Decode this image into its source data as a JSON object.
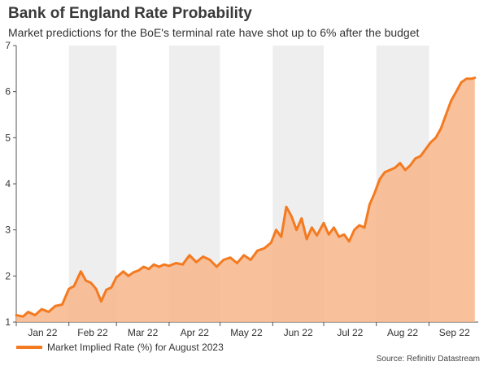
{
  "title": "Bank of England Rate Probability",
  "subtitle": "Market predictions for the BoE's terminal rate have shot up to 6% after the budget",
  "source": "Source: Refinitiv Datastream",
  "colors": {
    "line": "#f47a20",
    "area": "#f7b68a",
    "shade": "#eeeeee"
  },
  "chart_data": {
    "type": "area",
    "title": "Bank of England Rate Probability",
    "subtitle": "Market predictions for the BoE's terminal rate have shot up to 6% after the budget",
    "xlabel": "",
    "ylabel": "",
    "ylim": [
      1,
      7
    ],
    "yticks": [
      1,
      2,
      3,
      4,
      5,
      6,
      7
    ],
    "grid": false,
    "legend_position": "bottom-left",
    "month_labels": [
      "Jan 22",
      "Feb 22",
      "Mar 22",
      "Apr 22",
      "May 22",
      "Jun 22",
      "Jul 22",
      "Aug 22",
      "Sep 22"
    ],
    "series": [
      {
        "name": "Market Implied Rate (%) for August 2023",
        "x": [
          "2022-01-01",
          "2022-01-05",
          "2022-01-08",
          "2022-01-12",
          "2022-01-16",
          "2022-01-20",
          "2022-01-24",
          "2022-01-28",
          "2022-02-01",
          "2022-02-04",
          "2022-02-08",
          "2022-02-11",
          "2022-02-14",
          "2022-02-17",
          "2022-02-20",
          "2022-02-23",
          "2022-02-26",
          "2022-03-01",
          "2022-03-02",
          "2022-03-05",
          "2022-03-08",
          "2022-03-11",
          "2022-03-14",
          "2022-03-17",
          "2022-03-20",
          "2022-03-23",
          "2022-03-26",
          "2022-03-29",
          "2022-04-01",
          "2022-04-05",
          "2022-04-09",
          "2022-04-13",
          "2022-04-17",
          "2022-04-21",
          "2022-04-25",
          "2022-04-29",
          "2022-05-03",
          "2022-05-07",
          "2022-05-11",
          "2022-05-15",
          "2022-05-19",
          "2022-05-23",
          "2022-05-27",
          "2022-05-31",
          "2022-06-03",
          "2022-06-06",
          "2022-06-09",
          "2022-06-12",
          "2022-06-15",
          "2022-06-18",
          "2022-06-21",
          "2022-06-24",
          "2022-06-27",
          "2022-07-01",
          "2022-07-04",
          "2022-07-07",
          "2022-07-10",
          "2022-07-13",
          "2022-07-16",
          "2022-07-19",
          "2022-07-22",
          "2022-07-25",
          "2022-07-28",
          "2022-07-31",
          "2022-08-03",
          "2022-08-06",
          "2022-08-09",
          "2022-08-12",
          "2022-08-15",
          "2022-08-18",
          "2022-08-21",
          "2022-08-24",
          "2022-08-27",
          "2022-08-30",
          "2022-09-02",
          "2022-09-05",
          "2022-09-08",
          "2022-09-11",
          "2022-09-14",
          "2022-09-17",
          "2022-09-20",
          "2022-09-23",
          "2022-09-26",
          "2022-09-28"
        ],
        "values": [
          1.15,
          1.12,
          1.22,
          1.15,
          1.28,
          1.22,
          1.35,
          1.38,
          1.72,
          1.78,
          2.1,
          1.9,
          1.85,
          1.72,
          1.45,
          1.7,
          1.75,
          1.98,
          2.0,
          2.1,
          2.0,
          2.08,
          2.12,
          2.2,
          2.15,
          2.25,
          2.2,
          2.25,
          2.22,
          2.28,
          2.25,
          2.45,
          2.3,
          2.42,
          2.35,
          2.2,
          2.35,
          2.4,
          2.28,
          2.45,
          2.35,
          2.55,
          2.6,
          2.72,
          3.0,
          2.85,
          3.5,
          3.3,
          3.0,
          3.25,
          2.8,
          3.05,
          2.88,
          3.15,
          2.9,
          3.05,
          2.85,
          2.9,
          2.75,
          3.0,
          3.1,
          3.05,
          3.55,
          3.8,
          4.1,
          4.25,
          4.3,
          4.35,
          4.45,
          4.3,
          4.4,
          4.55,
          4.6,
          4.75,
          4.9,
          5.0,
          5.2,
          5.5,
          5.8,
          6.0,
          6.2,
          6.28,
          6.28,
          6.3
        ]
      }
    ]
  }
}
